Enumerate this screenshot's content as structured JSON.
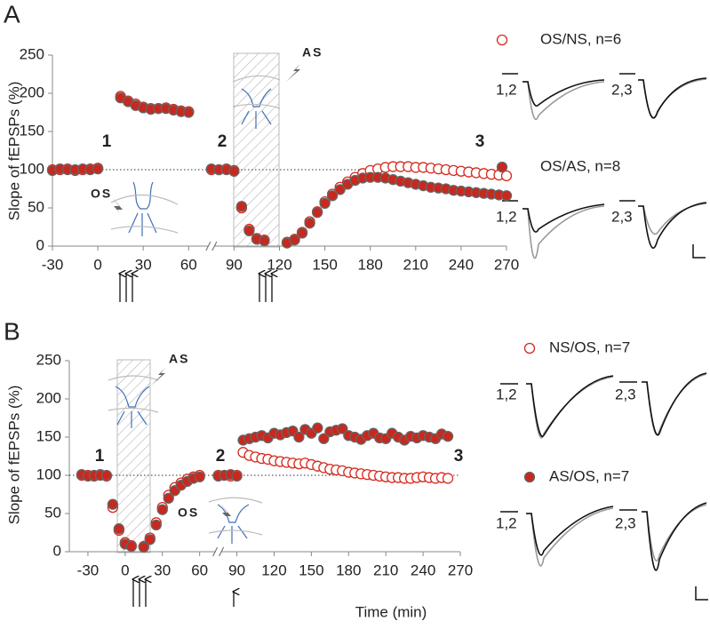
{
  "chart_data": [
    {
      "type": "scatter",
      "panel_label": "A",
      "ylabel": "Slope of fEPSPs (%)",
      "ylim": [
        0,
        250
      ],
      "yticks": [
        0,
        50,
        100,
        150,
        200,
        250
      ],
      "xlim": [
        -30,
        270
      ],
      "xticks": [
        -30,
        0,
        30,
        60,
        90,
        120,
        150,
        180,
        210,
        240,
        270
      ],
      "reference_line": 100,
      "annotations": [
        "1",
        "2",
        "3",
        "OS",
        "AS"
      ],
      "trace_labels": [
        "1,2",
        "2,3",
        "1,2",
        "2,3"
      ],
      "x": [
        -30,
        -25,
        -20,
        -15,
        -10,
        -5,
        0,
        15,
        20,
        25,
        30,
        35,
        40,
        45,
        50,
        55,
        60,
        75,
        80,
        85,
        90,
        95,
        100,
        105,
        110,
        125,
        130,
        135,
        140,
        145,
        150,
        155,
        160,
        165,
        170,
        175,
        180,
        185,
        190,
        195,
        200,
        205,
        210,
        215,
        220,
        225,
        230,
        235,
        240,
        245,
        250,
        255,
        260,
        265,
        270
      ],
      "series": [
        {
          "name": "OS/NS,  n=6",
          "color": "#d62a1e",
          "filled": false,
          "values": [
            100,
            100,
            101,
            99,
            100,
            101,
            102,
            196,
            190,
            186,
            182,
            180,
            180,
            181,
            179,
            177,
            176,
            100,
            100,
            101,
            99,
            50,
            22,
            10,
            8,
            5,
            9,
            18,
            32,
            45,
            58,
            68,
            77,
            84,
            90,
            95,
            99,
            101,
            103,
            104,
            104,
            104,
            103,
            103,
            102,
            101,
            100,
            99,
            98,
            97,
            96,
            95,
            94,
            93,
            92
          ]
        },
        {
          "name": "OS/AS,  n=8",
          "color": "#c8281e",
          "filled": true,
          "values": [
            99,
            101,
            100,
            100,
            101,
            100,
            101,
            194,
            189,
            184,
            181,
            179,
            180,
            180,
            178,
            176,
            175,
            101,
            100,
            100,
            98,
            52,
            20,
            9,
            7,
            4,
            8,
            17,
            30,
            44,
            56,
            66,
            74,
            81,
            86,
            89,
            90,
            90,
            89,
            87,
            85,
            83,
            81,
            79,
            77,
            76,
            75,
            73,
            72,
            71,
            70,
            69,
            68,
            67,
            66
          ]
        }
      ]
    },
    {
      "type": "scatter",
      "panel_label": "B",
      "ylabel": "Slope of fEPSPs (%)",
      "xlabel": "Time (min)",
      "ylim": [
        0,
        250
      ],
      "yticks": [
        0,
        50,
        100,
        150,
        200,
        250
      ],
      "xlim": [
        -45,
        270
      ],
      "xticks": [
        -30,
        0,
        30,
        60,
        90,
        120,
        150,
        180,
        210,
        240,
        270
      ],
      "reference_line": 100,
      "annotations": [
        "1",
        "2",
        "3",
        "OS",
        "AS"
      ],
      "trace_labels": [
        "1,2",
        "2,3",
        "1,2",
        "2,3"
      ],
      "x": [
        -35,
        -30,
        -25,
        -20,
        -15,
        -10,
        -5,
        0,
        5,
        15,
        20,
        25,
        30,
        35,
        40,
        45,
        50,
        55,
        60,
        75,
        80,
        85,
        90,
        95,
        100,
        105,
        110,
        115,
        120,
        125,
        130,
        135,
        140,
        145,
        150,
        155,
        160,
        165,
        170,
        175,
        180,
        185,
        190,
        195,
        200,
        205,
        210,
        215,
        220,
        225,
        230,
        235,
        240,
        245,
        250,
        255,
        260
      ],
      "series": [
        {
          "name": "NS/OS, n=7",
          "color": "#d62a1e",
          "filled": false,
          "values": [
            100,
            100,
            99,
            101,
            99,
            58,
            28,
            12,
            8,
            7,
            18,
            38,
            58,
            74,
            84,
            90,
            95,
            98,
            100,
            100,
            100,
            99,
            100,
            130,
            126,
            124,
            122,
            121,
            119,
            118,
            117,
            116,
            115,
            116,
            114,
            112,
            110,
            108,
            107,
            106,
            104,
            103,
            102,
            101,
            100,
            99,
            98,
            97,
            97,
            96,
            96,
            97,
            98,
            97,
            96,
            97,
            96
          ]
        },
        {
          "name": "AS/OS, n=7",
          "color": "#c8281e",
          "filled": true,
          "values": [
            101,
            99,
            100,
            100,
            100,
            62,
            30,
            10,
            7,
            6,
            16,
            35,
            55,
            70,
            80,
            87,
            92,
            96,
            98,
            99,
            100,
            101,
            99,
            146,
            148,
            150,
            152,
            149,
            155,
            153,
            156,
            158,
            150,
            160,
            155,
            162,
            148,
            157,
            159,
            161,
            152,
            150,
            147,
            152,
            155,
            149,
            148,
            155,
            150,
            146,
            151,
            149,
            152,
            150,
            148,
            154,
            151
          ]
        }
      ]
    }
  ]
}
